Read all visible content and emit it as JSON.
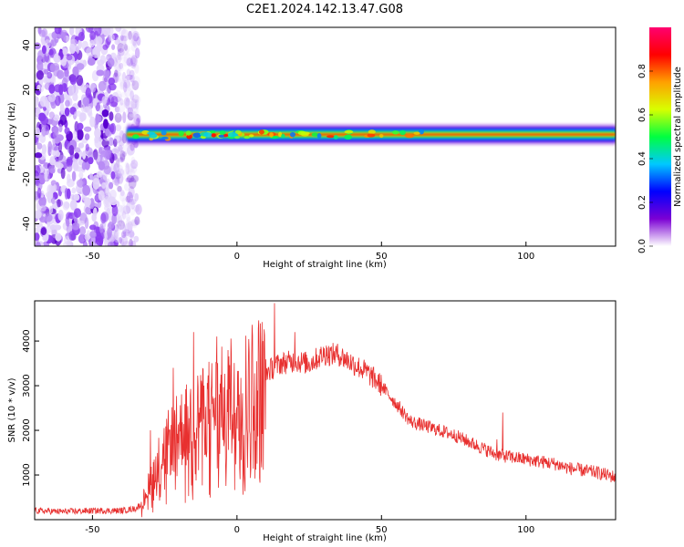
{
  "title": "C2E1.2024.142.13.47.G08",
  "chart_data": [
    {
      "type": "heatmap",
      "title": "C2E1.2024.142.13.47.G08",
      "xlabel": "Height of straight line (km)",
      "ylabel": "Frequency (Hz)",
      "xlim": [
        -70,
        131
      ],
      "ylim": [
        -50,
        48
      ],
      "xticks": [
        -50,
        0,
        50,
        100
      ],
      "xtick_labels": [
        "-50",
        "0",
        "50",
        "100"
      ],
      "yticks": [
        -40,
        -20,
        0,
        20,
        40
      ],
      "ytick_labels": [
        "-40",
        "-20",
        "0",
        "20",
        "40"
      ],
      "colorbar": {
        "label": "Normalized spectral amplitude",
        "range": [
          0,
          1
        ],
        "ticks": [
          0.0,
          0.2,
          0.4,
          0.6,
          0.8
        ],
        "tick_labels": [
          "0.0",
          "0.2",
          "0.4",
          "0.6",
          "0.8"
        ],
        "colormap": [
          "#ffffff",
          "#7b00d4",
          "#0000ff",
          "#00c8ff",
          "#00ff40",
          "#d8ff00",
          "#ffa000",
          "#ff0000",
          "#ff0070"
        ]
      },
      "noise_region_x": [
        -70,
        -38
      ],
      "signal_band_center_hz": 0,
      "signal_band_halfwidth_hz": 3
    },
    {
      "type": "line",
      "xlabel": "Height of straight line (km)",
      "ylabel": "SNR (10 * v/v)",
      "xlim": [
        -70,
        131
      ],
      "ylim": [
        0,
        4900
      ],
      "xticks": [
        -50,
        0,
        50,
        100
      ],
      "xtick_labels": [
        "-50",
        "0",
        "50",
        "100"
      ],
      "yticks": [
        1000,
        2000,
        3000,
        4000
      ],
      "ytick_labels": [
        "1000",
        "2000",
        "3000",
        "4000"
      ],
      "color": "#e8302f",
      "series": [
        {
          "name": "SNR",
          "x": [
            -70,
            -60,
            -50,
            -40,
            -35,
            -33,
            -30,
            -25,
            -20,
            -15,
            -10,
            -5,
            0,
            5,
            10,
            15,
            20,
            25,
            30,
            35,
            40,
            45,
            50,
            55,
            60,
            65,
            70,
            75,
            80,
            85,
            90,
            95,
            100,
            105,
            110,
            115,
            120,
            125,
            131
          ],
          "y": [
            200,
            180,
            200,
            200,
            250,
            350,
            900,
            1600,
            2000,
            2300,
            2500,
            2700,
            2900,
            3100,
            3300,
            3500,
            3550,
            3500,
            3700,
            3700,
            3500,
            3300,
            3000,
            2600,
            2200,
            2100,
            2000,
            1900,
            1750,
            1600,
            1450,
            1400,
            1350,
            1300,
            1250,
            1150,
            1100,
            1050,
            950
          ]
        }
      ],
      "spikes": [
        {
          "x": -30,
          "y": 2000
        },
        {
          "x": -22,
          "y": 3400
        },
        {
          "x": -15,
          "y": 4200
        },
        {
          "x": -7,
          "y": 4100
        },
        {
          "x": -2,
          "y": 3700
        },
        {
          "x": 4,
          "y": 3500
        },
        {
          "x": 9,
          "y": 4000
        },
        {
          "x": 13,
          "y": 4850
        },
        {
          "x": 20,
          "y": 4200
        },
        {
          "x": 31,
          "y": 3900
        },
        {
          "x": 90,
          "y": 1800
        },
        {
          "x": 92,
          "y": 2400
        }
      ]
    }
  ]
}
